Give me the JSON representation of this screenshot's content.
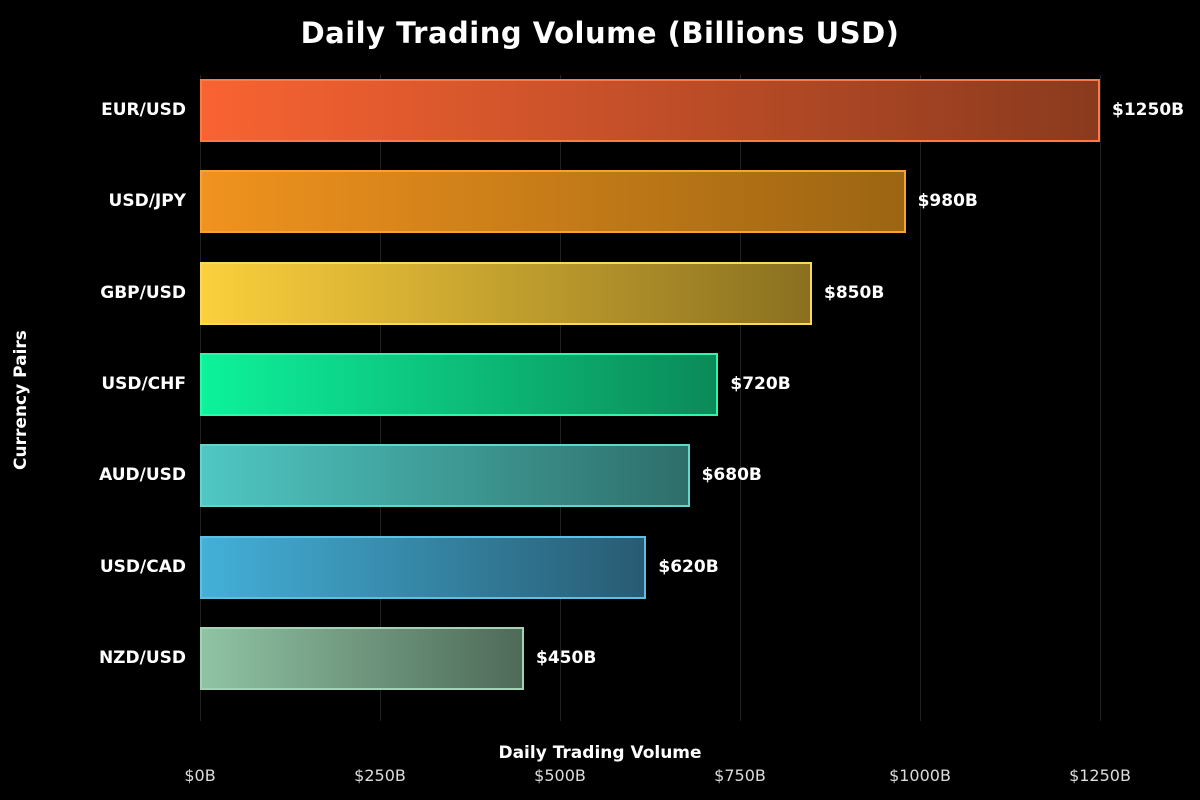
{
  "title": "Daily Trading Volume (Billions USD)",
  "chart_data": {
    "type": "bar",
    "orientation": "horizontal",
    "title": "Daily Trading Volume (Billions USD)",
    "xlabel": "Daily Trading Volume",
    "ylabel": "Currency Pairs",
    "categories": [
      "EUR/USD",
      "USD/JPY",
      "GBP/USD",
      "USD/CHF",
      "AUD/USD",
      "USD/CAD",
      "NZD/USD"
    ],
    "values": [
      1250,
      980,
      850,
      720,
      680,
      620,
      450
    ],
    "value_labels": [
      "$1250B",
      "$980B",
      "$850B",
      "$720B",
      "$680B",
      "$620B",
      "$450B"
    ],
    "x_ticks": [
      "$0B",
      "$250B",
      "$500B",
      "$750B",
      "$1000B",
      "$1250B"
    ],
    "x_tick_values": [
      0,
      250,
      500,
      750,
      1000,
      1250
    ],
    "xlim": [
      0,
      1333
    ],
    "grid": "vertical-only",
    "legend": "none",
    "bars": [
      {
        "pair": "EUR/USD",
        "value": 1250,
        "label": "$1250B",
        "color_start": "#f96332",
        "color_end": "#8a3a1e",
        "edge": "#fb7a47"
      },
      {
        "pair": "USD/JPY",
        "value": 980,
        "label": "$980B",
        "color_start": "#f0921e",
        "color_end": "#9c6512",
        "edge": "#f7a232"
      },
      {
        "pair": "GBP/USD",
        "value": 850,
        "label": "$850B",
        "color_start": "#fbd03c",
        "color_end": "#8a7020",
        "edge": "#fcd95c"
      },
      {
        "pair": "USD/CHF",
        "value": 720,
        "label": "$720B",
        "color_start": "#0df29b",
        "color_end": "#0b8a58",
        "edge": "#2ef7ac"
      },
      {
        "pair": "AUD/USD",
        "value": 680,
        "label": "$680B",
        "color_start": "#4fc7c2",
        "color_end": "#2e6e6a",
        "edge": "#66d4ce"
      },
      {
        "pair": "USD/CAD",
        "value": 620,
        "label": "$620B",
        "color_start": "#43b0d8",
        "color_end": "#285b72",
        "edge": "#5cc0e4"
      },
      {
        "pair": "NZD/USD",
        "value": 450,
        "label": "$450B",
        "color_start": "#8fc3a3",
        "color_end": "#4e6a58",
        "edge": "#a4d2b5"
      }
    ]
  },
  "colors": {
    "background": "#000000",
    "text": "#ffffff",
    "tick_text": "#dcdcdc",
    "gridline": "#212121"
  }
}
